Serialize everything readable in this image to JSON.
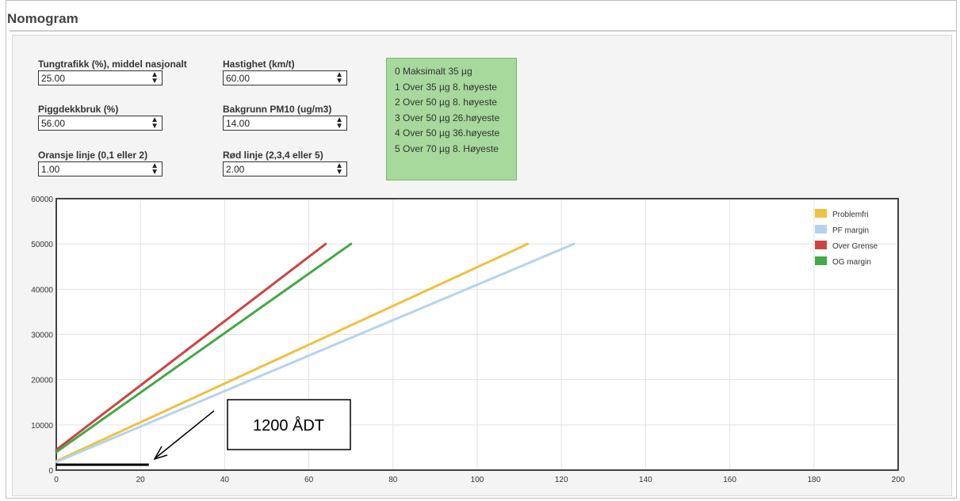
{
  "page_title": "Nomogram",
  "inputs": [
    {
      "label": "Tungtrafikk (%), middel nasjonalt",
      "value": "25.00"
    },
    {
      "label": "Hastighet (km/t)",
      "value": "60.00"
    },
    {
      "label": "Piggdekkbruk (%)",
      "value": "56.00"
    },
    {
      "label": "Bakgrunn PM10 (ug/m3)",
      "value": "14.00"
    },
    {
      "label": "Oransje linje (0,1 eller 2)",
      "value": "1.00"
    },
    {
      "label": "Rød linje (2,3,4 eller 5)",
      "value": "2.00"
    }
  ],
  "info_box": [
    "0  Maksimalt 35 µg",
    "1  Over 35 µg 8. høyeste",
    "2  Over 50 µg 8. høyeste",
    "3  Over 50 µg 26.høyeste",
    "4  Over 50 µg 36.høyeste",
    "5  Over 70 µg 8. Høyeste"
  ],
  "annotation": {
    "text": "1200 ÅDT"
  },
  "colors": {
    "problemfri": "#f0c040",
    "pf_margin": "#b5d3ec",
    "over_grense": "#cc4444",
    "og_margin": "#44a844",
    "info_bg": "#a6d99b"
  },
  "chart_data": {
    "type": "line",
    "xlim": [
      0,
      200
    ],
    "ylim": [
      0,
      60000
    ],
    "x_ticks": [
      "0",
      "20",
      "40",
      "60",
      "80",
      "100",
      "120",
      "140",
      "160",
      "180",
      "200"
    ],
    "y_ticks": [
      "0",
      "10000",
      "20000",
      "30000",
      "40000",
      "50000",
      "60000"
    ],
    "grid": true,
    "legend_position": "top-right",
    "series": [
      {
        "name": "Problemfri",
        "color": "#f0c040",
        "points": [
          [
            0,
            2000
          ],
          [
            112,
            50000
          ]
        ]
      },
      {
        "name": "PF margin",
        "color": "#b5d3ec",
        "points": [
          [
            0,
            1800
          ],
          [
            123,
            50000
          ]
        ]
      },
      {
        "name": "Over Grense",
        "color": "#cc4444",
        "points": [
          [
            0,
            4500
          ],
          [
            64,
            50000
          ]
        ]
      },
      {
        "name": "OG margin",
        "color": "#44a844",
        "points": [
          [
            0,
            4000
          ],
          [
            70,
            50000
          ]
        ]
      }
    ],
    "reference_line": {
      "x": [
        0,
        22
      ],
      "y": 1200
    }
  }
}
